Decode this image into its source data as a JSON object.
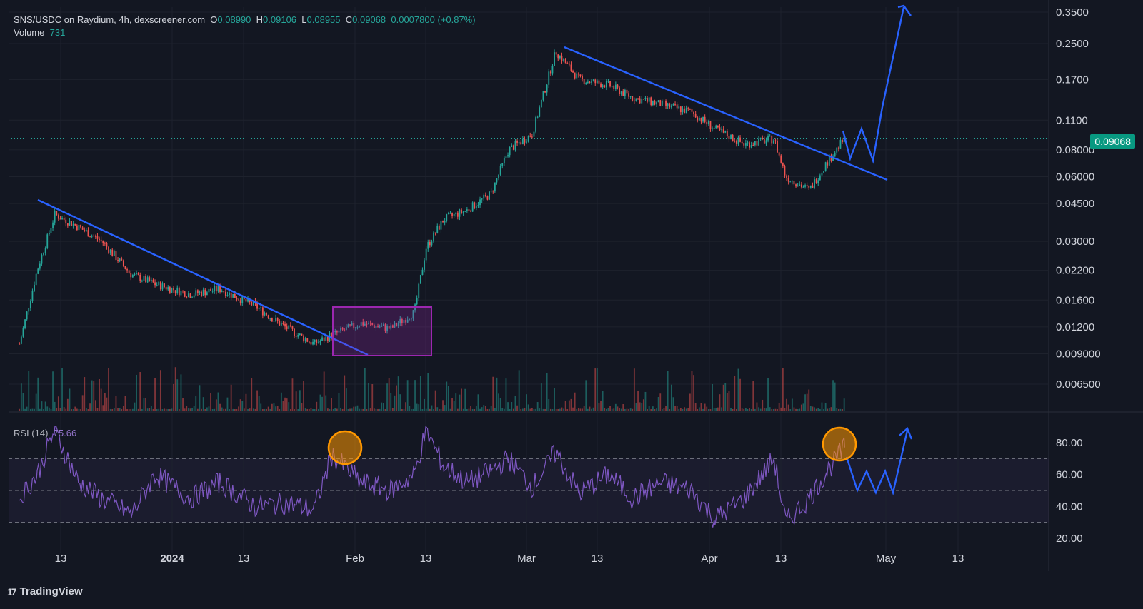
{
  "header": {
    "symbol": "SNS/USDC on Raydium, 4h, dexscreener.com",
    "o_label": "O",
    "o_val": "0.08990",
    "h_label": "H",
    "h_val": "0.09106",
    "l_label": "L",
    "l_val": "0.08955",
    "c_label": "C",
    "c_val": "0.09068",
    "change": "0.0007800 (+0.87%)",
    "volume_label": "Volume",
    "volume_val": "731"
  },
  "rsi": {
    "label": "RSI (14)",
    "value": "75.66"
  },
  "last_price_tag": "0.09068",
  "brand": {
    "name": "TradingView"
  },
  "colors": {
    "background": "#131722",
    "up": "#26a69a",
    "down": "#ef5350",
    "drawing": "#2962ff",
    "rsi_line": "#7e57c2",
    "rect": "#9c27b0",
    "circle": "#ff9800"
  },
  "chart_data": [
    {
      "type": "line",
      "subtype": "candlestick",
      "title": "SNS/USDC on Raydium, 4h, dexscreener.com",
      "scale": "log",
      "ylim": [
        0.005,
        0.36
      ],
      "y_ticks": [
        "0.3500",
        "0.2500",
        "0.1700",
        "0.1100",
        "0.08000",
        "0.06000",
        "0.04500",
        "0.03000",
        "0.02200",
        "0.01600",
        "0.01200",
        "0.009000",
        "0.006500"
      ],
      "x_ticks": [
        "13",
        "2024",
        "13",
        "Feb",
        "13",
        "Mar",
        "13",
        "Apr",
        "13",
        "May",
        "13"
      ],
      "series": [
        {
          "name": "Close",
          "x": [
            "2023-12-06",
            "2023-12-09",
            "2023-12-12",
            "2023-12-16",
            "2023-12-20",
            "2023-12-25",
            "2023-12-29",
            "2024-01-04",
            "2024-01-09",
            "2024-01-15",
            "2024-01-20",
            "2024-01-25",
            "2024-01-28",
            "2024-02-02",
            "2024-02-07",
            "2024-02-11",
            "2024-02-13",
            "2024-02-16",
            "2024-02-20",
            "2024-02-24",
            "2024-02-27",
            "2024-03-02",
            "2024-03-06",
            "2024-03-10",
            "2024-03-15",
            "2024-03-19",
            "2024-03-24",
            "2024-03-29",
            "2024-04-02",
            "2024-04-07",
            "2024-04-12",
            "2024-04-14",
            "2024-04-18",
            "2024-04-21",
            "2024-04-24"
          ],
          "y": [
            0.01,
            0.022,
            0.04,
            0.035,
            0.03,
            0.021,
            0.019,
            0.017,
            0.018,
            0.015,
            0.012,
            0.01,
            0.011,
            0.0125,
            0.0118,
            0.014,
            0.028,
            0.038,
            0.042,
            0.05,
            0.08,
            0.095,
            0.23,
            0.17,
            0.16,
            0.14,
            0.13,
            0.12,
            0.1,
            0.085,
            0.09,
            0.06,
            0.052,
            0.07,
            0.0907
          ]
        }
      ]
    },
    {
      "type": "line",
      "title": "RSI (14)",
      "ylim": [
        15,
        95
      ],
      "y_ticks": [
        "80.00",
        "60.00",
        "40.00",
        "20.00"
      ],
      "bands": [
        30,
        50,
        70
      ],
      "series": [
        {
          "name": "RSI (14)",
          "x": [
            "2023-12-06",
            "2023-12-09",
            "2023-12-12",
            "2023-12-16",
            "2023-12-20",
            "2023-12-25",
            "2023-12-29",
            "2024-01-04",
            "2024-01-09",
            "2024-01-15",
            "2024-01-20",
            "2024-01-25",
            "2024-01-28",
            "2024-02-02",
            "2024-02-07",
            "2024-02-11",
            "2024-02-13",
            "2024-02-16",
            "2024-02-20",
            "2024-02-24",
            "2024-02-27",
            "2024-03-02",
            "2024-03-06",
            "2024-03-10",
            "2024-03-15",
            "2024-03-19",
            "2024-03-24",
            "2024-03-29",
            "2024-04-02",
            "2024-04-07",
            "2024-04-12",
            "2024-04-14",
            "2024-04-18",
            "2024-04-21",
            "2024-04-24"
          ],
          "y": [
            45,
            60,
            88,
            55,
            45,
            35,
            60,
            45,
            55,
            40,
            42,
            38,
            72,
            55,
            50,
            60,
            88,
            65,
            55,
            62,
            70,
            52,
            74,
            48,
            60,
            45,
            55,
            50,
            32,
            45,
            70,
            30,
            45,
            62,
            77
          ]
        }
      ]
    }
  ]
}
